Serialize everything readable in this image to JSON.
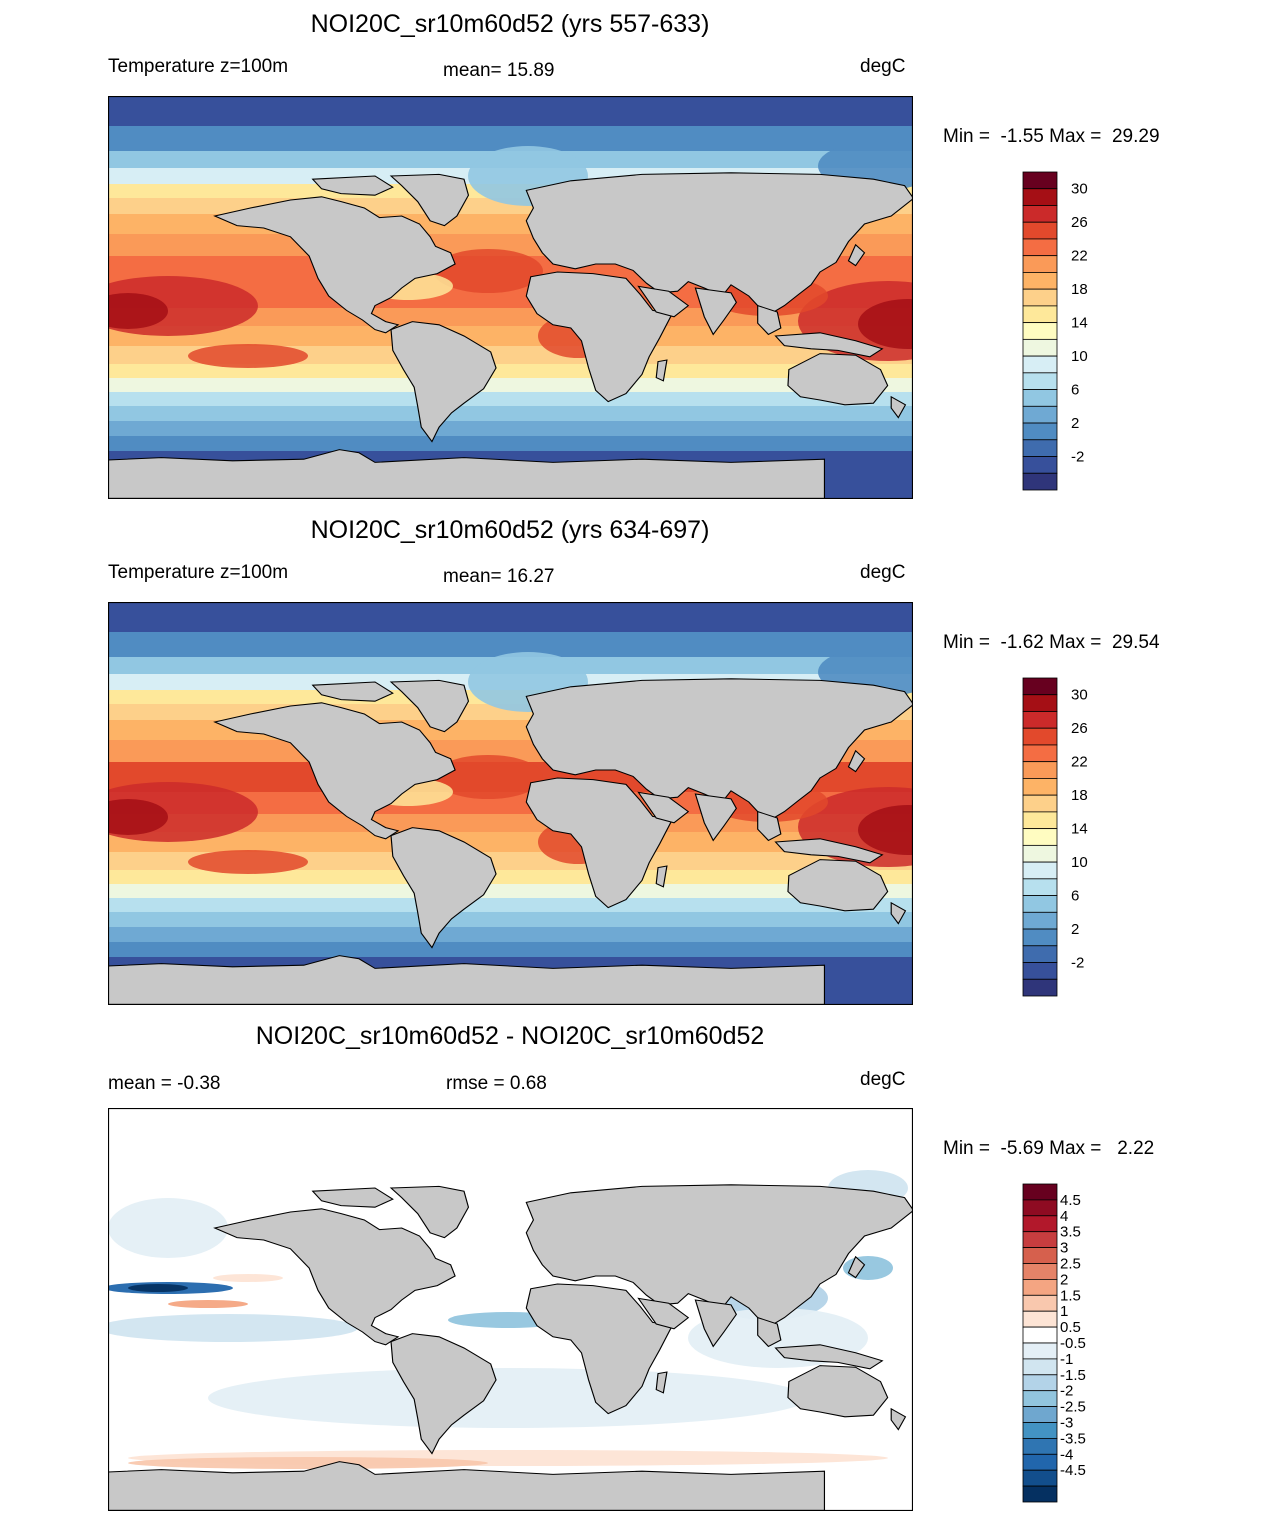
{
  "panels": [
    {
      "title": "NOI20C_sr10m60d52 (yrs 557-633)",
      "left_label": "Temperature z=100m",
      "center_label": "mean=  15.89",
      "units": "degC",
      "min_max": "Min =  -1.55 Max =  29.29",
      "colorbar": {
        "labels": [
          "30",
          "26",
          "22",
          "18",
          "14",
          "10",
          "6",
          "2",
          "-2"
        ],
        "colors": [
          "#67001f",
          "#a50f15",
          "#cb2a2a",
          "#e2492c",
          "#f46d43",
          "#fa9a58",
          "#fdb366",
          "#fdd08a",
          "#fee89a",
          "#fffcc1",
          "#eef7e0",
          "#d7eef5",
          "#b7e0ee",
          "#91c7e2",
          "#6fa9d3",
          "#508cc2",
          "#3f6cae",
          "#37509b",
          "#2f357a"
        ]
      }
    },
    {
      "title": "NOI20C_sr10m60d52 (yrs 634-697)",
      "left_label": "Temperature z=100m",
      "center_label": "mean=  16.27",
      "units": "degC",
      "min_max": "Min =  -1.62 Max =  29.54",
      "colorbar": {
        "labels": [
          "30",
          "26",
          "22",
          "18",
          "14",
          "10",
          "6",
          "2",
          "-2"
        ],
        "colors": [
          "#67001f",
          "#a50f15",
          "#cb2a2a",
          "#e2492c",
          "#f46d43",
          "#fa9a58",
          "#fdb366",
          "#fdd08a",
          "#fee89a",
          "#fffcc1",
          "#eef7e0",
          "#d7eef5",
          "#b7e0ee",
          "#91c7e2",
          "#6fa9d3",
          "#508cc2",
          "#3f6cae",
          "#37509b",
          "#2f357a"
        ]
      }
    },
    {
      "title": "NOI20C_sr10m60d52 - NOI20C_sr10m60d52",
      "left_label": "mean =  -0.38",
      "center_label": "rmse =   0.68",
      "units": "degC",
      "min_max": "Min =  -5.69 Max =   2.22",
      "colorbar": {
        "labels": [
          "4.5",
          "4",
          "3.5",
          "3",
          "2.5",
          "2",
          "1.5",
          "1",
          "0.5",
          "-0.5",
          "-1",
          "-1.5",
          "-2",
          "-2.5",
          "-3",
          "-3.5",
          "-4",
          "-4.5"
        ],
        "colors": [
          "#67001f",
          "#8e0b22",
          "#b2182b",
          "#c73d3f",
          "#d6604d",
          "#e58368",
          "#f4a582",
          "#f9c8ae",
          "#fde4d5",
          "#ffffff",
          "#e4eff6",
          "#d1e5f0",
          "#b3d3e8",
          "#92c5de",
          "#6fa7cf",
          "#4393c3",
          "#2f75b2",
          "#2166ac",
          "#124e8c",
          "#053061"
        ]
      }
    }
  ]
}
